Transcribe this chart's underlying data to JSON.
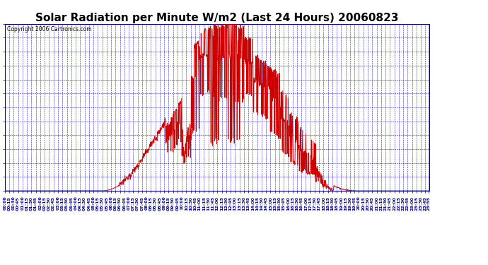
{
  "title": "Solar Radiation per Minute W/m2 (Last 24 Hours) 20060823",
  "copyright_text": "Copyright 2006 Cartronics.com",
  "title_fontsize": 11,
  "background_color": "#FFFFFF",
  "plot_bg_color": "#FFFFFF",
  "line_color": "#CC0000",
  "grid_color": "#0000CC",
  "yticks": [
    0.0,
    87.2,
    174.5,
    261.8,
    349.0,
    436.2,
    523.5,
    610.8,
    698.0,
    785.2,
    872.5,
    959.8,
    1047.0
  ],
  "ymax": 1047.0,
  "ymin": 0.0
}
